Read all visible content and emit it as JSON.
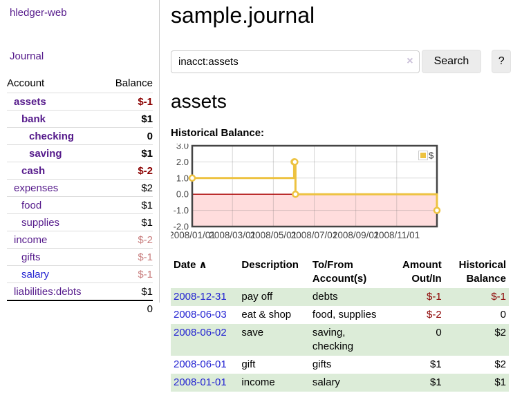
{
  "app": {
    "brand": "hledger-web"
  },
  "nav": {
    "journal": "Journal"
  },
  "sidebar": {
    "columns": {
      "account": "Account",
      "balance": "Balance"
    },
    "accounts": [
      {
        "name": "assets",
        "indent": 1,
        "bold": true,
        "link_color": "purple",
        "balance": "$-1",
        "balance_class": "neg-strong"
      },
      {
        "name": "bank",
        "indent": 2,
        "bold": true,
        "link_color": "purple",
        "balance": "$1",
        "balance_class": "pos"
      },
      {
        "name": "checking",
        "indent": 3,
        "bold": true,
        "link_color": "purple",
        "balance": "0",
        "balance_class": "pos"
      },
      {
        "name": "saving",
        "indent": 3,
        "bold": true,
        "link_color": "purple",
        "balance": "$1",
        "balance_class": "pos"
      },
      {
        "name": "cash",
        "indent": 2,
        "bold": true,
        "link_color": "purple",
        "balance": "$-2",
        "balance_class": "neg-strong"
      },
      {
        "name": "expenses",
        "indent": 1,
        "bold": false,
        "link_color": "purple",
        "balance": "$2",
        "balance_class": "pos"
      },
      {
        "name": "food",
        "indent": 2,
        "bold": false,
        "link_color": "purple",
        "balance": "$1",
        "balance_class": "pos"
      },
      {
        "name": "supplies",
        "indent": 2,
        "bold": false,
        "link_color": "purple",
        "balance": "$1",
        "balance_class": "pos"
      },
      {
        "name": "income",
        "indent": 1,
        "bold": false,
        "link_color": "purple",
        "balance": "$-2",
        "balance_class": "neg-soft"
      },
      {
        "name": "gifts",
        "indent": 2,
        "bold": false,
        "link_color": "purple",
        "balance": "$-1",
        "balance_class": "neg-soft"
      },
      {
        "name": "salary",
        "indent": 2,
        "bold": false,
        "link_color": "blue",
        "balance": "$-1",
        "balance_class": "neg-soft"
      },
      {
        "name": "liabilities:debts",
        "indent": 1,
        "bold": false,
        "link_color": "purple",
        "balance": "$1",
        "balance_class": "pos"
      }
    ],
    "total": "0"
  },
  "page": {
    "title": "sample.journal"
  },
  "search": {
    "value": "inacct:assets",
    "clear_icon": "×",
    "search_label": "Search",
    "help_label": "?"
  },
  "account_view": {
    "heading": "assets",
    "chart_title": "Historical Balance:"
  },
  "chart_data": {
    "type": "line",
    "title": "Historical Balance:",
    "series": [
      {
        "name": "$",
        "color": "#EDC240",
        "step": true,
        "points": [
          [
            "2008-01-01",
            1
          ],
          [
            "2008-06-01",
            2
          ],
          [
            "2008-06-02",
            2
          ],
          [
            "2008-06-03",
            0
          ],
          [
            "2008-12-31",
            -1
          ]
        ]
      }
    ],
    "x_range": [
      "2008-01-01",
      "2008-12-31"
    ],
    "x_ticks": [
      "2008/01/01",
      "2008/03/01",
      "2008/05/01",
      "2008/07/01",
      "2008/09/01",
      "2008/11/01"
    ],
    "y_ticks": [
      3.0,
      2.0,
      1.0,
      0.0,
      -1.0,
      -2.0
    ],
    "ylim": [
      -2,
      3
    ],
    "grid": true,
    "legend_position": "top-right",
    "negative_region_color": "#ffdddd",
    "zero_line_color": "#aa0000"
  },
  "register": {
    "sort_icon": "∧",
    "columns": [
      {
        "label": "Date",
        "align": "left",
        "sorted": true
      },
      {
        "label": "Description",
        "align": "left"
      },
      {
        "label": "To/From Account(s)",
        "align": "left"
      },
      {
        "label": "Amount Out/In",
        "align": "right"
      },
      {
        "label": "Historical Balance",
        "align": "right"
      }
    ],
    "rows": [
      {
        "date": "2008-12-31",
        "description": "pay off",
        "accounts": "debts",
        "amount": "$-1",
        "amount_class": "neg",
        "balance": "$-1",
        "balance_class": "neg"
      },
      {
        "date": "2008-06-03",
        "description": "eat & shop",
        "accounts": "food, supplies",
        "amount": "$-2",
        "amount_class": "neg",
        "balance": "0",
        "balance_class": "pos"
      },
      {
        "date": "2008-06-02",
        "description": "save",
        "accounts": "saving, checking",
        "amount": "0",
        "amount_class": "pos",
        "balance": "$2",
        "balance_class": "pos"
      },
      {
        "date": "2008-06-01",
        "description": "gift",
        "accounts": "gifts",
        "amount": "$1",
        "amount_class": "pos",
        "balance": "$2",
        "balance_class": "pos"
      },
      {
        "date": "2008-01-01",
        "description": "income",
        "accounts": "salary",
        "amount": "$1",
        "amount_class": "pos",
        "balance": "$1",
        "balance_class": "pos"
      }
    ]
  }
}
